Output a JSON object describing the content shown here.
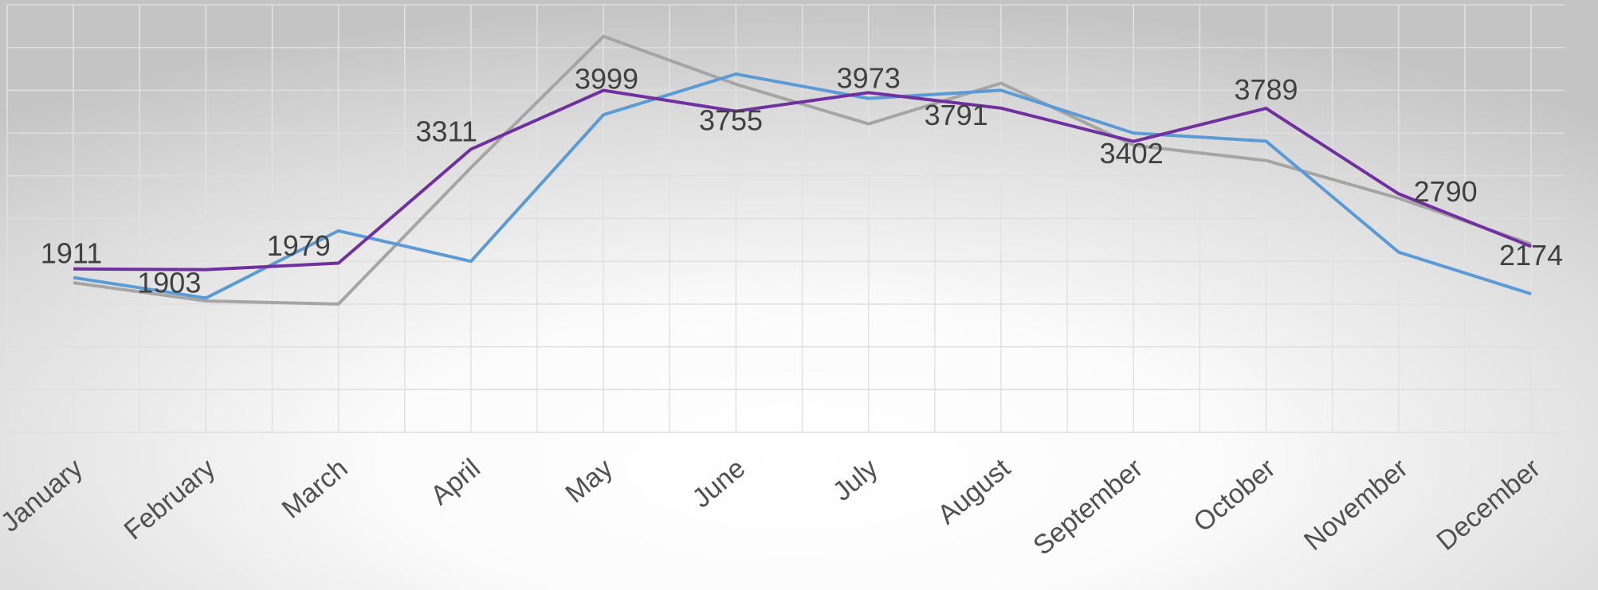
{
  "chart_data": {
    "type": "line",
    "categories": [
      "January",
      "February",
      "March",
      "April",
      "May",
      "June",
      "July",
      "August",
      "September",
      "October",
      "November",
      "December"
    ],
    "series": [
      {
        "color": "#a5a5a5",
        "values": [
          1750,
          1536,
          1500,
          3095,
          4631,
          4071,
          3607,
          4083,
          3357,
          3179,
          2738,
          2202
        ]
      },
      {
        "color": "#5b9bd5",
        "values": [
          1810,
          1571,
          2357,
          2000,
          3714,
          4190,
          3905,
          4000,
          3500,
          3405,
          2107,
          1619
        ]
      },
      {
        "color": "#7030a0",
        "values": [
          1911,
          1903,
          1979,
          3311,
          3999,
          3755,
          3973,
          3791,
          3402,
          3789,
          2790,
          2174
        ]
      }
    ],
    "labeled_series": 2,
    "ylim": [
      0,
      5000
    ],
    "yticks": [
      0,
      500,
      1000,
      1500,
      2000,
      2500,
      3000,
      3500,
      4000,
      4500,
      5000
    ],
    "grid": true
  }
}
